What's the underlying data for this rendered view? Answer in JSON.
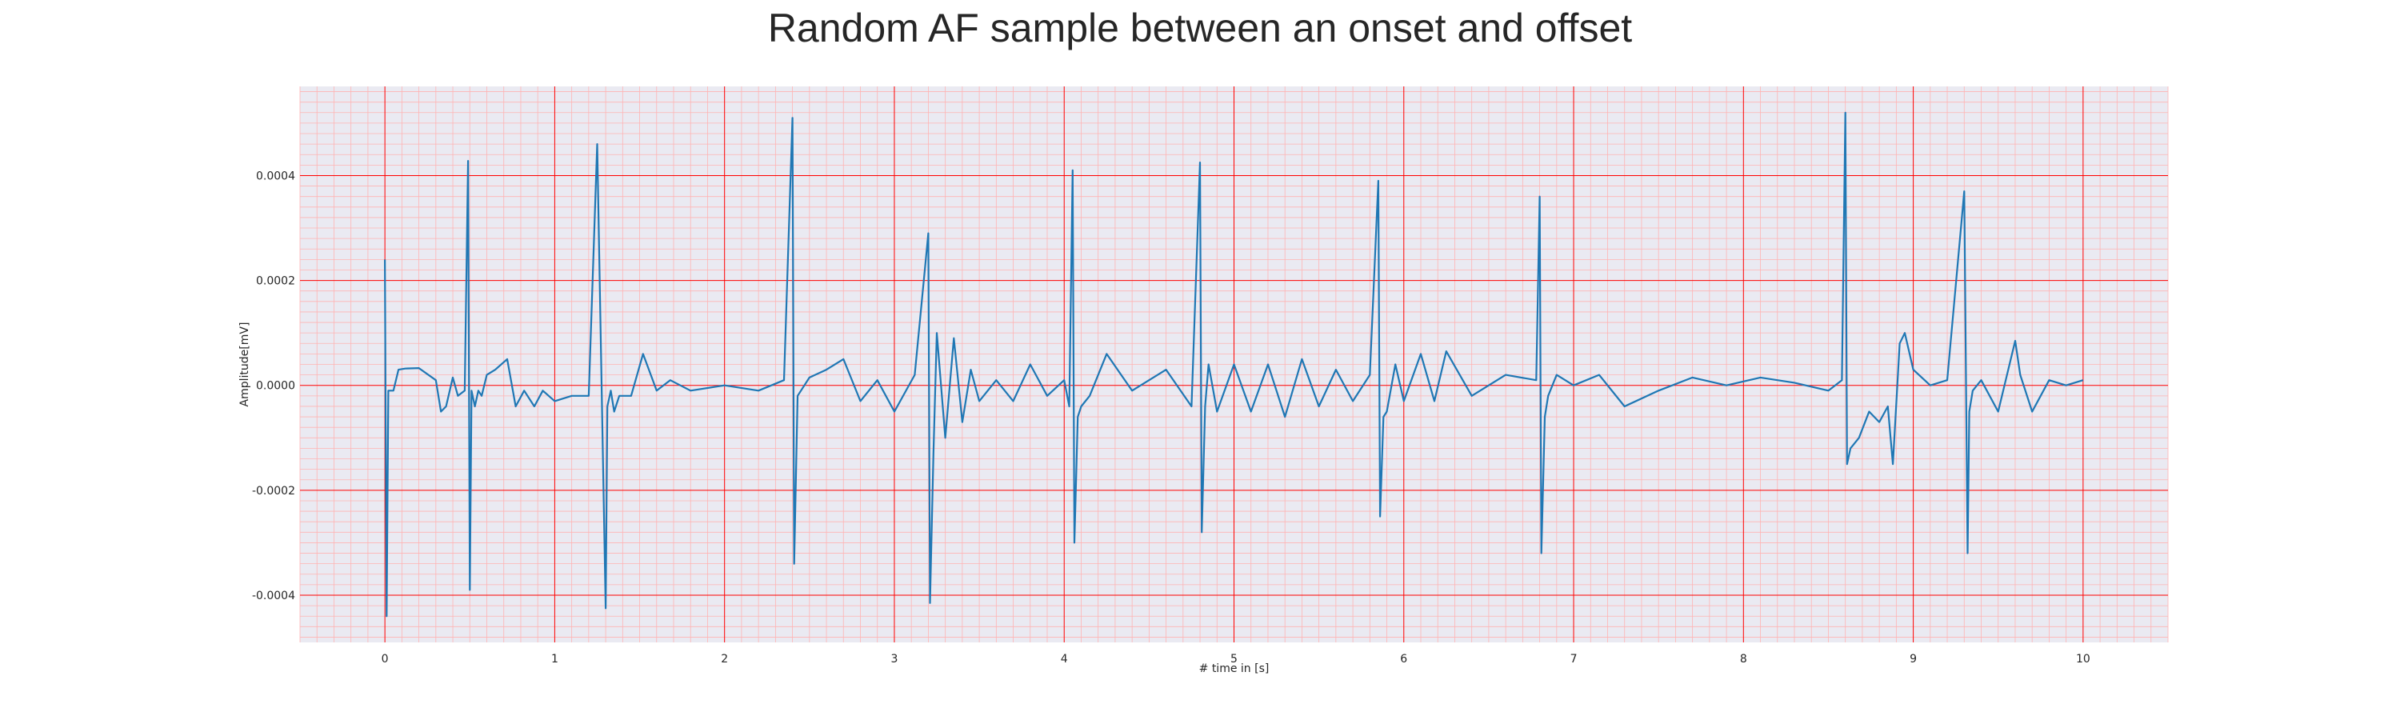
{
  "chart_data": {
    "type": "line",
    "title": "Random AF sample between an onset and offset",
    "xlabel": "# time in [s]",
    "ylabel": "Amplitude[mV]",
    "xlim": [
      -0.5,
      10.5
    ],
    "ylim": [
      -0.00049,
      0.00057
    ],
    "x_ticks": [
      0,
      1,
      2,
      3,
      4,
      5,
      6,
      7,
      8,
      9,
      10
    ],
    "x_tick_labels": [
      "0",
      "1",
      "2",
      "3",
      "4",
      "5",
      "6",
      "7",
      "8",
      "9",
      "10"
    ],
    "y_ticks": [
      -0.0004,
      -0.0002,
      0.0,
      0.0002,
      0.0004
    ],
    "y_tick_labels": [
      "-0.0004",
      "-0.0002",
      "0.0000",
      "0.0002",
      "0.0004"
    ],
    "grid": true,
    "colors": {
      "line": "#1f77b4",
      "plot_bg": "#eaeaf2",
      "major_grid": "#ff0000",
      "minor_grid": "#ffb3b3"
    },
    "series": [
      {
        "x": [
          0.0,
          0.01,
          0.02,
          0.05,
          0.08,
          0.12,
          0.2,
          0.3,
          0.33,
          0.36,
          0.4,
          0.43,
          0.47,
          0.49,
          0.5,
          0.51,
          0.53,
          0.55,
          0.57,
          0.6,
          0.65,
          0.72,
          0.77,
          0.82,
          0.88,
          0.93,
          1.0,
          1.1,
          1.2,
          1.25,
          1.3,
          1.31,
          1.33,
          1.35,
          1.38,
          1.45,
          1.52,
          1.6,
          1.68,
          1.8,
          2.0,
          2.2,
          2.35,
          2.4,
          2.41,
          2.43,
          2.45,
          2.5,
          2.6,
          2.7,
          2.8,
          2.9,
          3.0,
          3.12,
          3.2,
          3.21,
          3.23,
          3.25,
          3.3,
          3.35,
          3.4,
          3.45,
          3.5,
          3.6,
          3.7,
          3.8,
          3.9,
          4.0,
          4.03,
          4.05,
          4.06,
          4.08,
          4.1,
          4.15,
          4.25,
          4.4,
          4.6,
          4.75,
          4.8,
          4.81,
          4.83,
          4.85,
          4.9,
          5.0,
          5.1,
          5.2,
          5.3,
          5.4,
          5.5,
          5.6,
          5.7,
          5.8,
          5.85,
          5.86,
          5.88,
          5.9,
          5.95,
          6.0,
          6.1,
          6.18,
          6.25,
          6.4,
          6.6,
          6.78,
          6.8,
          6.81,
          6.83,
          6.85,
          6.9,
          7.0,
          7.15,
          7.3,
          7.5,
          7.7,
          7.9,
          8.1,
          8.3,
          8.5,
          8.58,
          8.6,
          8.61,
          8.63,
          8.68,
          8.74,
          8.8,
          8.85,
          8.88,
          8.92,
          8.95,
          9.0,
          9.1,
          9.2,
          9.3,
          9.32,
          9.33,
          9.35,
          9.4,
          9.5,
          9.6,
          9.63,
          9.7,
          9.8,
          9.9,
          10.0
        ],
        "values": [
          0.00024,
          -0.00044,
          -1e-05,
          -1e-05,
          3e-05,
          3.2e-05,
          3.3e-05,
          1e-05,
          -5e-05,
          -4e-05,
          1.5e-05,
          -2e-05,
          -1e-05,
          0.000428,
          -0.00039,
          -1e-05,
          -4e-05,
          -1e-05,
          -2e-05,
          2e-05,
          3e-05,
          5e-05,
          -4e-05,
          -1e-05,
          -4e-05,
          -1e-05,
          -3e-05,
          -2e-05,
          -2e-05,
          0.00046,
          -0.000425,
          -4e-05,
          -1e-05,
          -5e-05,
          -2e-05,
          -2e-05,
          6e-05,
          -1e-05,
          1e-05,
          -1e-05,
          0.0,
          -1e-05,
          1e-05,
          0.00051,
          -0.00034,
          -2e-05,
          -1e-05,
          1.5e-05,
          3e-05,
          5e-05,
          -3e-05,
          1e-05,
          -5e-05,
          2e-05,
          0.00029,
          -0.000415,
          -0.00013,
          0.0001,
          -0.0001,
          9e-05,
          -7e-05,
          3e-05,
          -3e-05,
          1e-05,
          -3e-05,
          4e-05,
          -2e-05,
          1e-05,
          -4e-05,
          0.00041,
          -0.0003,
          -6e-05,
          -4e-05,
          -2e-05,
          6e-05,
          -1e-05,
          3e-05,
          -4e-05,
          0.000425,
          -0.00028,
          -4e-05,
          4e-05,
          -5e-05,
          4e-05,
          -5e-05,
          4e-05,
          -6e-05,
          5e-05,
          -4e-05,
          3e-05,
          -3e-05,
          2e-05,
          0.00039,
          -0.00025,
          -6e-05,
          -5e-05,
          4e-05,
          -3e-05,
          6e-05,
          -3e-05,
          6.5e-05,
          -2e-05,
          2e-05,
          1e-05,
          0.00036,
          -0.00032,
          -6e-05,
          -2e-05,
          2e-05,
          0.0,
          2e-05,
          -4e-05,
          -1e-05,
          1.5e-05,
          0.0,
          1.5e-05,
          5e-06,
          -1e-05,
          1e-05,
          0.00052,
          -0.00015,
          -0.00012,
          -0.0001,
          -5e-05,
          -7e-05,
          -4e-05,
          -0.00015,
          8e-05,
          0.0001,
          3e-05,
          0.0,
          1e-05,
          0.00037,
          -0.00032,
          -5e-05,
          -1e-05,
          1e-05,
          -5e-05,
          8.5e-05,
          2e-05,
          -5e-05,
          1e-05,
          0.0,
          1e-05
        ]
      }
    ]
  }
}
